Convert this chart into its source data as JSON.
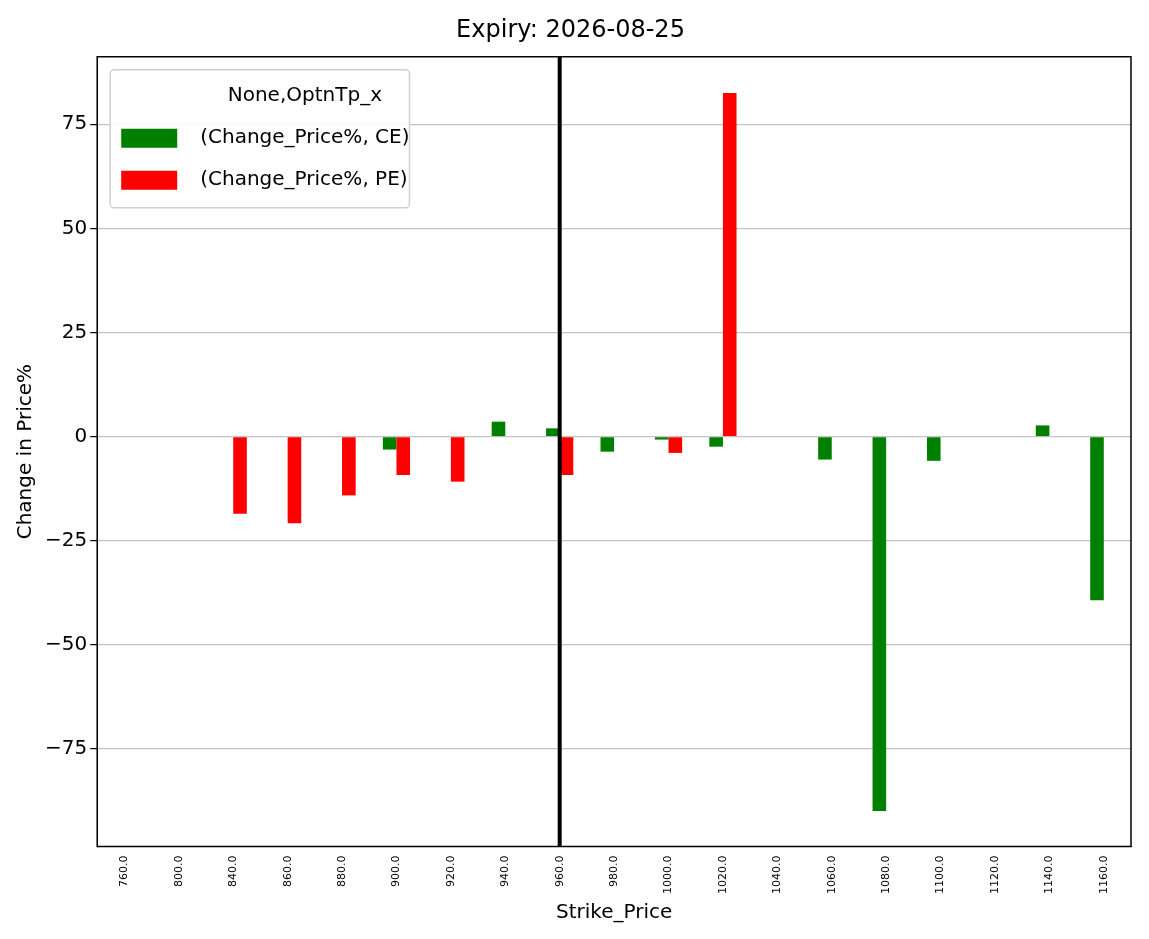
{
  "chart_data": {
    "type": "bar",
    "title": "Expiry: 2026-08-25",
    "xlabel": "Strike_Price",
    "ylabel": "Change in Price%",
    "legend_title": "None,OptnTp_x",
    "categories": [
      "760.0",
      "800.0",
      "840.0",
      "860.0",
      "880.0",
      "900.0",
      "920.0",
      "940.0",
      "960.0",
      "980.0",
      "1000.0",
      "1020.0",
      "1040.0",
      "1060.0",
      "1080.0",
      "1100.0",
      "1120.0",
      "1140.0",
      "1160.0"
    ],
    "series": [
      {
        "name": "(Change_Price%, CE)",
        "color": "#008000",
        "values": [
          null,
          null,
          null,
          null,
          null,
          -3.1,
          null,
          3.6,
          2.0,
          -3.6,
          -0.7,
          -2.4,
          null,
          -5.5,
          -89.9,
          -5.8,
          null,
          2.7,
          -39.3
        ]
      },
      {
        "name": "(Change_Price%, PE)",
        "color": "#ff0000",
        "values": [
          null,
          null,
          -18.5,
          -20.8,
          -14.1,
          -9.2,
          -10.8,
          null,
          -9.2,
          null,
          -3.9,
          82.5,
          null,
          null,
          null,
          null,
          null,
          null,
          null
        ]
      }
    ],
    "ylim": [
      -98.4,
      91.2
    ],
    "yticks": [
      {
        "value": -75,
        "label": "−75"
      },
      {
        "value": -50,
        "label": "−50"
      },
      {
        "value": -25,
        "label": "−25"
      },
      0,
      25,
      50,
      75
    ],
    "grid": "y",
    "legend": "top left",
    "ref_lines": [
      {
        "axis": "x",
        "value": "960.0",
        "color": "#000000"
      }
    ]
  }
}
